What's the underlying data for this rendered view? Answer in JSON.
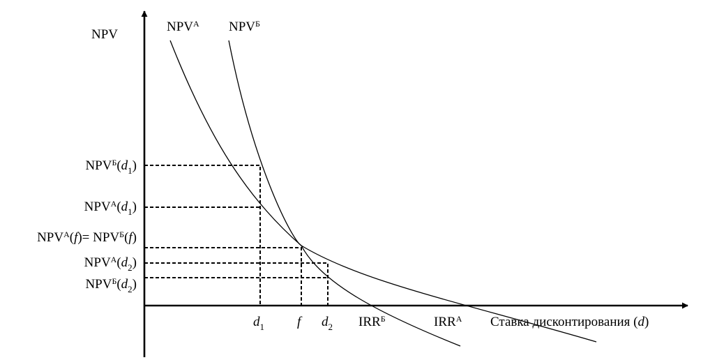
{
  "chart_data": {
    "type": "line",
    "ylabel": "NPV",
    "xlabel": {
      "main": "Ставка дисконтирования (",
      "var": "d",
      "close": ")"
    },
    "series": [
      {
        "name": {
          "base": "NPV",
          "sup": "A"
        }
      },
      {
        "name": {
          "base": "NPV",
          "sup": "Б"
        }
      }
    ],
    "x_ticks": [
      {
        "base": "d",
        "sub": "1"
      },
      {
        "base": "f",
        "sub": ""
      },
      {
        "base": "d",
        "sub": "2"
      },
      {
        "base": "IRR",
        "sup": "Б"
      },
      {
        "base": "IRR",
        "sup": "A"
      }
    ],
    "y_ticks": [
      {
        "parts": [
          {
            "t": "NPV"
          },
          {
            "t": "Б",
            "k": "sup"
          },
          {
            "t": "("
          },
          {
            "t": "d",
            "k": "it"
          },
          {
            "t": "1",
            "k": "sub"
          },
          {
            "t": ")"
          }
        ]
      },
      {
        "parts": [
          {
            "t": "NPV"
          },
          {
            "t": "A",
            "k": "sup"
          },
          {
            "t": "("
          },
          {
            "t": "d",
            "k": "it"
          },
          {
            "t": "1",
            "k": "sub"
          },
          {
            "t": ")"
          }
        ]
      },
      {
        "parts": [
          {
            "t": "NPV"
          },
          {
            "t": "A",
            "k": "sup"
          },
          {
            "t": "("
          },
          {
            "t": "f",
            "k": "it"
          },
          {
            "t": ")= "
          },
          {
            "t": "NPV"
          },
          {
            "t": "Б",
            "k": "sup"
          },
          {
            "t": "("
          },
          {
            "t": "f",
            "k": "it"
          },
          {
            "t": ")"
          }
        ]
      },
      {
        "parts": [
          {
            "t": "NPV"
          },
          {
            "t": "A",
            "k": "sup"
          },
          {
            "t": "("
          },
          {
            "t": "d",
            "k": "it"
          },
          {
            "t": "2",
            "k": "sub"
          },
          {
            "t": ")"
          }
        ]
      },
      {
        "parts": [
          {
            "t": "NPV"
          },
          {
            "t": "Б",
            "k": "sup"
          },
          {
            "t": "("
          },
          {
            "t": "d",
            "k": "it"
          },
          {
            "t": "2",
            "k": "sub"
          },
          {
            "t": ")"
          }
        ]
      }
    ]
  }
}
